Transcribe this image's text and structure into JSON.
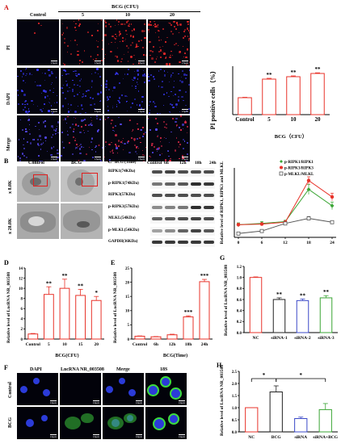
{
  "panels": {
    "A": {
      "letter": "A",
      "header_group": "BCG (CFU)",
      "column_labels": [
        "Control",
        "5",
        "10",
        "20"
      ],
      "row_labels": [
        "PI",
        "DAPI",
        "Merge"
      ],
      "scale_bar": "15μm"
    },
    "B": {
      "letter": "B",
      "column_labels": [
        "Control",
        "BCG"
      ],
      "row_labels": [
        "x 8.0K",
        "x 20.0K"
      ]
    },
    "C": {
      "letter": "C",
      "header_row": [
        "BCG (Time)",
        "Control",
        "6h",
        "12h",
        "18h",
        "24h"
      ],
      "proteins": [
        "RIPK1(74KDa)",
        "p-RIPK1(74KDa)",
        "RIPK3(57KDa)",
        "p-RIPK3(57KDa)",
        "MLKL(54KDa)",
        "p-MLKL(54KDa)",
        "GAPDH(36KDa)"
      ]
    },
    "D": {
      "letter": "D"
    },
    "E": {
      "letter": "E"
    },
    "F": {
      "letter": "F",
      "column_labels": [
        "DAPI",
        "LncRNA NR_003508",
        "Merge",
        "18S"
      ],
      "row_labels": [
        "Control",
        "BCG"
      ],
      "scale_bar": "10μm"
    },
    "G": {
      "letter": "G"
    },
    "H": {
      "letter": "H"
    }
  },
  "chart_data": [
    {
      "id": "A_bar",
      "type": "bar",
      "ylabel": "PI positive cells（%）",
      "xlabel": "BCG（CFU）",
      "categories": [
        "Control",
        "5",
        "10",
        "20"
      ],
      "values": [
        0.21,
        0.44,
        0.47,
        0.51
      ],
      "errors": [
        0.005,
        0.01,
        0.01,
        0.008
      ],
      "significance": [
        "",
        "**",
        "**",
        "**"
      ],
      "color": "#e8332a",
      "ylim": [
        0,
        0.6
      ]
    },
    {
      "id": "C_line",
      "type": "line",
      "ylabel": "Relative level of RIPK1, RIPK3 and MLKL",
      "x": [
        0,
        6,
        12,
        18,
        24
      ],
      "xticks": [
        "0",
        "6",
        "12",
        "18",
        "24"
      ],
      "series": [
        {
          "name": "p-RIPK1/RIPK1",
          "color": "#3aa534",
          "marker": "diamond",
          "values": [
            1.0,
            1.1,
            1.25,
            3.8,
            2.5
          ],
          "errors": [
            0.15,
            0.15,
            0.1,
            0.4,
            0.3
          ]
        },
        {
          "name": "p-RIPK3/RIPK3",
          "color": "#e8332a",
          "marker": "circle",
          "values": [
            1.0,
            1.05,
            1.2,
            4.5,
            3.2
          ],
          "errors": [
            0.1,
            0.1,
            0.1,
            0.3,
            0.3
          ]
        },
        {
          "name": "p-MLKL/MLKL",
          "color": "#555555",
          "marker": "square",
          "values": [
            0.3,
            0.5,
            1.1,
            1.5,
            1.2
          ],
          "errors": [
            0.05,
            0.08,
            0.1,
            0.15,
            0.1
          ]
        }
      ],
      "ylim": [
        0,
        5.5
      ]
    },
    {
      "id": "D_bar",
      "type": "bar",
      "ylabel": "Relative level of LncRNA NR_003508",
      "xlabel": "BCG(CFU)",
      "categories": [
        "Control",
        "5",
        "10",
        "15",
        "20"
      ],
      "values": [
        1,
        8.8,
        10,
        8.6,
        7.6
      ],
      "errors": [
        0.1,
        1.5,
        1.8,
        1.2,
        0.8
      ],
      "significance": [
        "",
        "**",
        "**",
        "**",
        "*"
      ],
      "yticks": [
        "0",
        "2",
        "4",
        "6",
        "8",
        "10",
        "12",
        "14"
      ],
      "color": "#e8332a",
      "ylim": [
        0,
        14
      ]
    },
    {
      "id": "E_bar",
      "type": "bar",
      "ylabel": "Relative level of LncRNA NR_003508",
      "xlabel": "BCG(Time)",
      "categories": [
        "Control",
        "6h",
        "12h",
        "18h",
        "24h"
      ],
      "values": [
        1,
        0.8,
        1.5,
        7.8,
        20.2
      ],
      "errors": [
        0.1,
        0.1,
        0.2,
        0.4,
        0.8
      ],
      "significance": [
        "",
        "",
        "",
        "***",
        "***"
      ],
      "yticks": [
        "0",
        "5",
        "10",
        "15",
        "20",
        "25"
      ],
      "color": "#e8332a",
      "ylim": [
        0,
        25
      ]
    },
    {
      "id": "G_bar",
      "type": "bar",
      "ylabel": "Relative level of LncRNA NR_003508",
      "categories": [
        "NC",
        "siRNA-1",
        "siRNA-2",
        "siRNA-3"
      ],
      "values": [
        1.0,
        0.6,
        0.58,
        0.63
      ],
      "errors": [
        0.01,
        0.03,
        0.03,
        0.04
      ],
      "significance": [
        "",
        "**",
        "**",
        "**"
      ],
      "colors": [
        "#e8332a",
        "#222222",
        "#3b49c8",
        "#3aa534"
      ],
      "yticks": [
        "0.0",
        "0.2",
        "0.4",
        "0.6",
        "0.8",
        "1.0",
        "1.2"
      ],
      "ylim": [
        0,
        1.2
      ]
    },
    {
      "id": "H_bar",
      "type": "bar",
      "ylabel": "Relative level of LncRNA NR_003508",
      "categories": [
        "NC",
        "BCG",
        "siRNA",
        "siRNA+BCG"
      ],
      "values": [
        1.0,
        1.65,
        0.55,
        0.92
      ],
      "errors": [
        0.0,
        0.25,
        0.06,
        0.25
      ],
      "colors": [
        "#e8332a",
        "#222222",
        "#3b49c8",
        "#3aa534"
      ],
      "comparisons": [
        {
          "from": 0,
          "to": 1,
          "label": "*"
        },
        {
          "from": 1,
          "to": 3,
          "label": "*"
        }
      ],
      "yticks": [
        "0.0",
        "0.5",
        "1.0",
        "1.5",
        "2.0",
        "2.5"
      ],
      "ylim": [
        0,
        2.5
      ]
    }
  ]
}
